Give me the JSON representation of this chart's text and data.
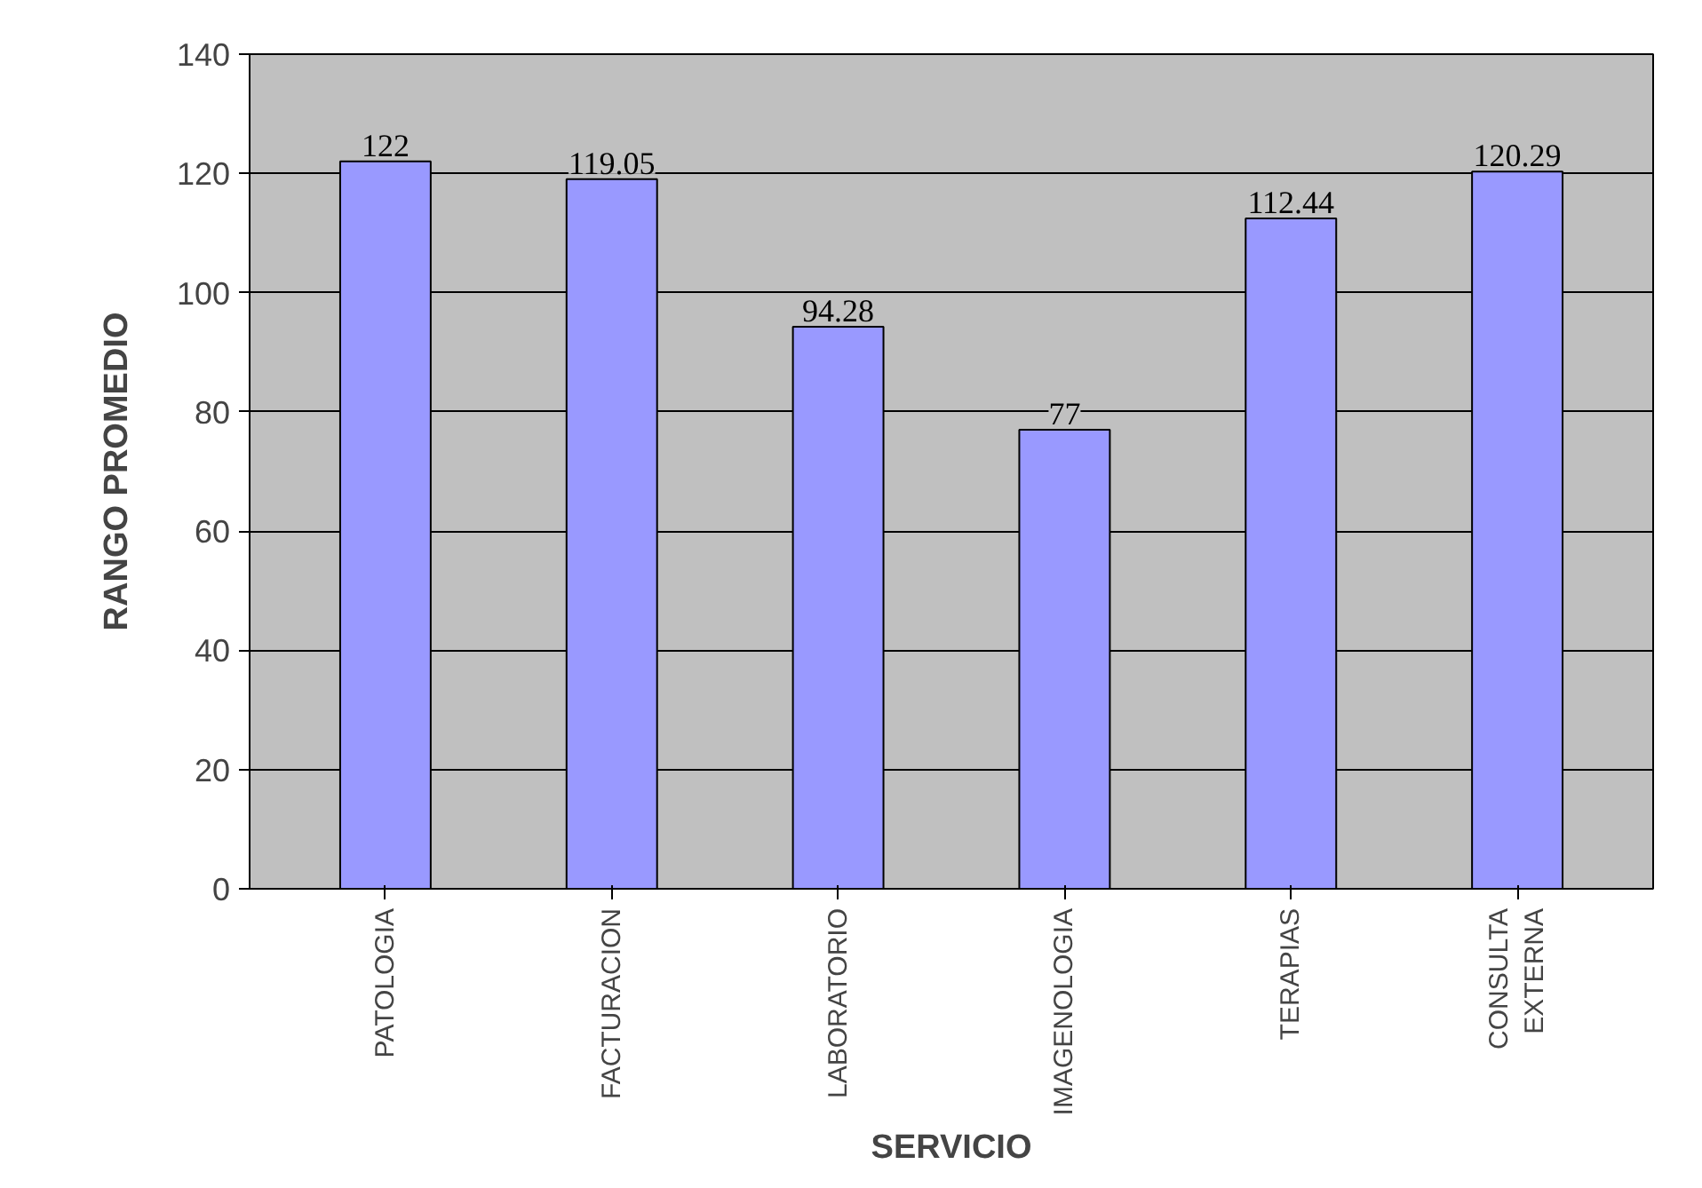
{
  "chart_data": {
    "type": "bar",
    "xlabel": "SERVICIO",
    "ylabel": "RANGO PROMEDIO",
    "categories": [
      "PATOLOGIA",
      "FACTURACION",
      "LABORATORIO",
      "IMAGENOLOGIA",
      "TERAPIAS",
      "CONSULTA EXTERNA"
    ],
    "values": [
      122,
      119.05,
      94.28,
      77,
      112.44,
      120.29
    ],
    "color": "#9999ff",
    "ylim": [
      0,
      140
    ],
    "yticks": [
      0,
      20,
      40,
      60,
      80,
      100,
      120,
      140
    ],
    "grid": "y",
    "data_labels": true
  }
}
